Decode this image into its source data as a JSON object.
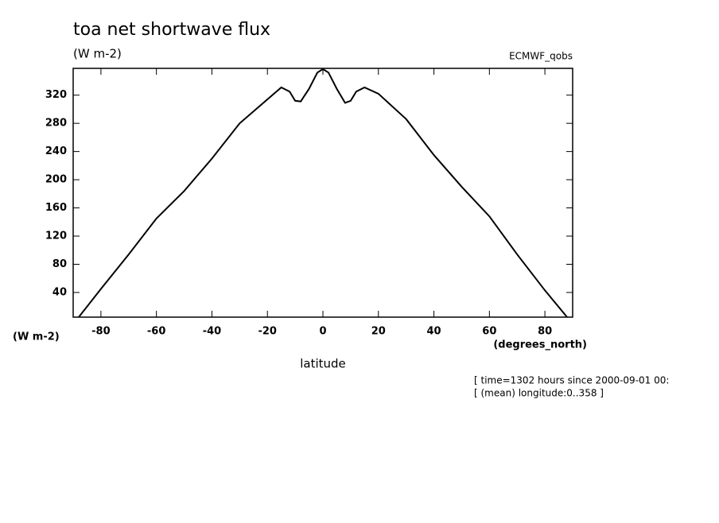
{
  "chart_data": {
    "type": "line",
    "title": "toa net shortwave flux",
    "units": "(W m-2)",
    "source": "ECMWF_qobs",
    "ylabel": "(W m-2)",
    "xunits": "(degrees_north)",
    "xlabel": "latitude",
    "notes": [
      "[ time=1302 hours since 2000-09-01 00:",
      "[ (mean) longitude:0..358 ]"
    ],
    "x": [
      -88,
      -80,
      -70,
      -60,
      -50,
      -40,
      -30,
      -20,
      -15,
      -12,
      -10,
      -8,
      -5,
      -2,
      0,
      2,
      5,
      8,
      10,
      12,
      15,
      20,
      30,
      40,
      50,
      60,
      70,
      80,
      88
    ],
    "series": [
      {
        "color": "#000000",
        "values": [
          5,
          45,
          94,
          145,
          184,
          230,
          280,
          314,
          331,
          325,
          312,
          311,
          329,
          352,
          357,
          352,
          329,
          309,
          312,
          325,
          331,
          322,
          286,
          235,
          190,
          148,
          94,
          43,
          5
        ]
      }
    ],
    "xlim": [
      -90,
      90
    ],
    "ylim": [
      5,
      358
    ],
    "xticks": [
      -80,
      -60,
      -40,
      -20,
      0,
      20,
      40,
      60,
      80
    ],
    "yticks": [
      40,
      80,
      120,
      160,
      200,
      240,
      280,
      320
    ]
  }
}
